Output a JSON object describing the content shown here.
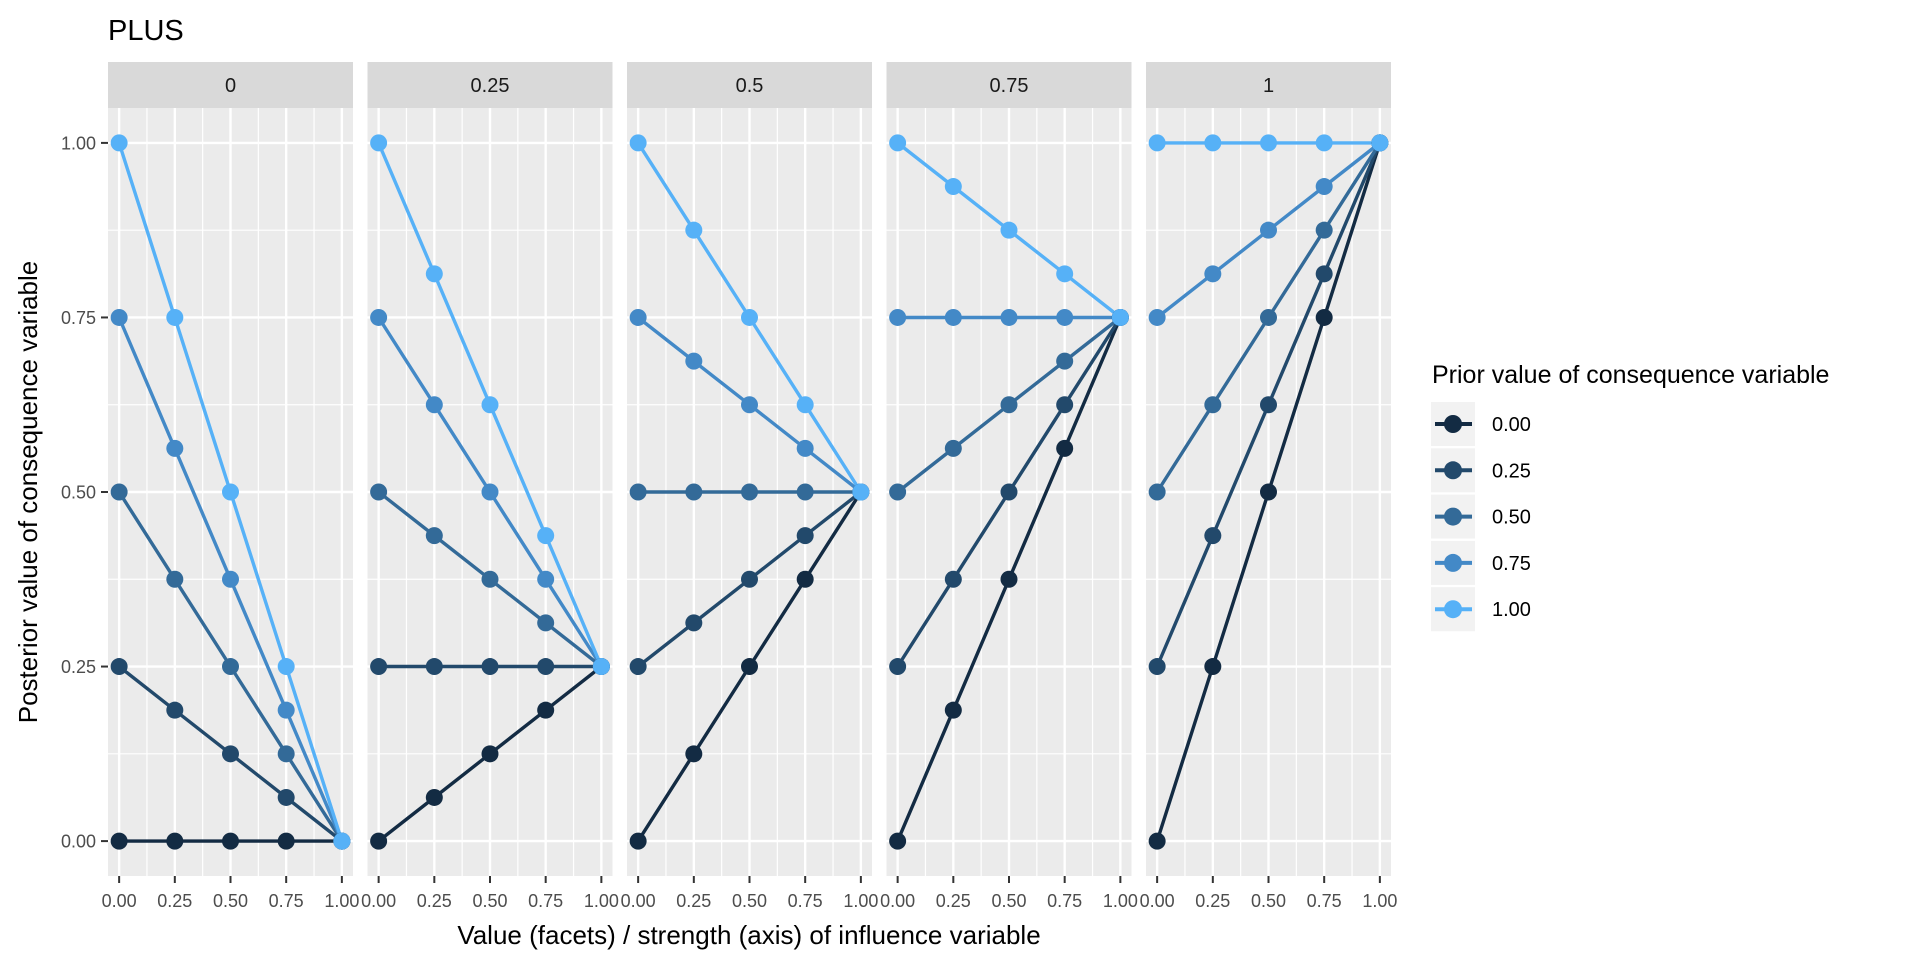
{
  "chart_data": {
    "type": "line",
    "title": "PLUS",
    "xlabel": "Value (facets) / strength (axis) of influence variable",
    "ylabel": "Posterior value of consequence variable",
    "facets": [
      "0",
      "0.25",
      "0.5",
      "0.75",
      "1"
    ],
    "facet_values": [
      0,
      0.25,
      0.5,
      0.75,
      1
    ],
    "x": [
      0,
      0.25,
      0.5,
      0.75,
      1
    ],
    "x_tick_labels": [
      "0.00",
      "0.25",
      "0.50",
      "0.75",
      "1.00"
    ],
    "y_tick_labels": [
      "0.00",
      "0.25",
      "0.50",
      "0.75",
      "1.00"
    ],
    "y_ticks": [
      0,
      0.25,
      0.5,
      0.75,
      1
    ],
    "xlim": [
      0,
      1
    ],
    "ylim": [
      0,
      1
    ],
    "grid": true,
    "legend": {
      "title": "Prior value of consequence variable",
      "position": "right",
      "entries": [
        "0.00",
        "0.25",
        "0.50",
        "0.75",
        "1.00"
      ],
      "colors": [
        "#132B43",
        "#22496B",
        "#336A98",
        "#4389C7",
        "#56B1F7"
      ]
    },
    "panels": [
      {
        "facet": "0",
        "series": [
          {
            "name": "0.00",
            "values": [
              0,
              0,
              0,
              0,
              0
            ]
          },
          {
            "name": "0.25",
            "values": [
              0.25,
              0.1875,
              0.125,
              0.0625,
              0
            ]
          },
          {
            "name": "0.50",
            "values": [
              0.5,
              0.375,
              0.25,
              0.125,
              0
            ]
          },
          {
            "name": "0.75",
            "values": [
              0.75,
              0.5625,
              0.375,
              0.1875,
              0
            ]
          },
          {
            "name": "1.00",
            "values": [
              1,
              0.75,
              0.5,
              0.25,
              0
            ]
          }
        ]
      },
      {
        "facet": "0.25",
        "series": [
          {
            "name": "0.00",
            "values": [
              0,
              0.0625,
              0.125,
              0.1875,
              0.25
            ]
          },
          {
            "name": "0.25",
            "values": [
              0.25,
              0.25,
              0.25,
              0.25,
              0.25
            ]
          },
          {
            "name": "0.50",
            "values": [
              0.5,
              0.4375,
              0.375,
              0.3125,
              0.25
            ]
          },
          {
            "name": "0.75",
            "values": [
              0.75,
              0.625,
              0.5,
              0.375,
              0.25
            ]
          },
          {
            "name": "1.00",
            "values": [
              1,
              0.8125,
              0.625,
              0.4375,
              0.25
            ]
          }
        ]
      },
      {
        "facet": "0.5",
        "series": [
          {
            "name": "0.00",
            "values": [
              0,
              0.125,
              0.25,
              0.375,
              0.5
            ]
          },
          {
            "name": "0.25",
            "values": [
              0.25,
              0.3125,
              0.375,
              0.4375,
              0.5
            ]
          },
          {
            "name": "0.50",
            "values": [
              0.5,
              0.5,
              0.5,
              0.5,
              0.5
            ]
          },
          {
            "name": "0.75",
            "values": [
              0.75,
              0.6875,
              0.625,
              0.5625,
              0.5
            ]
          },
          {
            "name": "1.00",
            "values": [
              1,
              0.875,
              0.75,
              0.625,
              0.5
            ]
          }
        ]
      },
      {
        "facet": "0.75",
        "series": [
          {
            "name": "0.00",
            "values": [
              0,
              0.1875,
              0.375,
              0.5625,
              0.75
            ]
          },
          {
            "name": "0.25",
            "values": [
              0.25,
              0.375,
              0.5,
              0.625,
              0.75
            ]
          },
          {
            "name": "0.50",
            "values": [
              0.5,
              0.5625,
              0.625,
              0.6875,
              0.75
            ]
          },
          {
            "name": "0.75",
            "values": [
              0.75,
              0.75,
              0.75,
              0.75,
              0.75
            ]
          },
          {
            "name": "1.00",
            "values": [
              1,
              0.9375,
              0.875,
              0.8125,
              0.75
            ]
          }
        ]
      },
      {
        "facet": "1",
        "series": [
          {
            "name": "0.00",
            "values": [
              0,
              0.25,
              0.5,
              0.75,
              1
            ]
          },
          {
            "name": "0.25",
            "values": [
              0.25,
              0.4375,
              0.625,
              0.8125,
              1
            ]
          },
          {
            "name": "0.50",
            "values": [
              0.5,
              0.625,
              0.75,
              0.875,
              1
            ]
          },
          {
            "name": "0.75",
            "values": [
              0.75,
              0.8125,
              0.875,
              0.9375,
              1
            ]
          },
          {
            "name": "1.00",
            "values": [
              1,
              1,
              1,
              1,
              1
            ]
          }
        ]
      }
    ]
  }
}
